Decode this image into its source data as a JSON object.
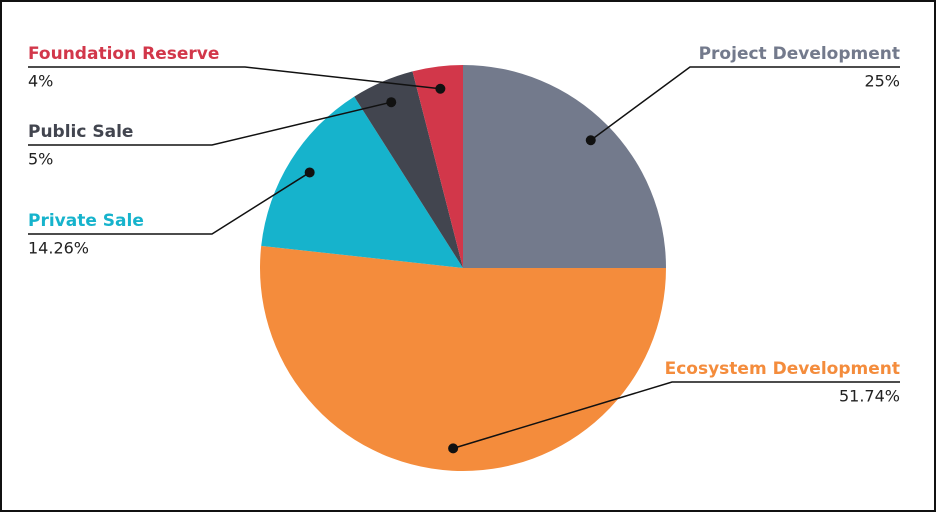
{
  "chart_data": {
    "type": "pie",
    "categories": [
      "Project Development",
      "Ecosystem Development",
      "Private Sale",
      "Public Sale",
      "Foundation Reserve"
    ],
    "values": [
      25,
      51.74,
      14.26,
      5,
      4
    ],
    "value_labels": [
      "25%",
      "51.74%",
      "14.26%",
      "5%",
      "4%"
    ],
    "colors": [
      "#737a8c",
      "#f48c3c",
      "#16b3cc",
      "#42454f",
      "#d2374a"
    ]
  }
}
